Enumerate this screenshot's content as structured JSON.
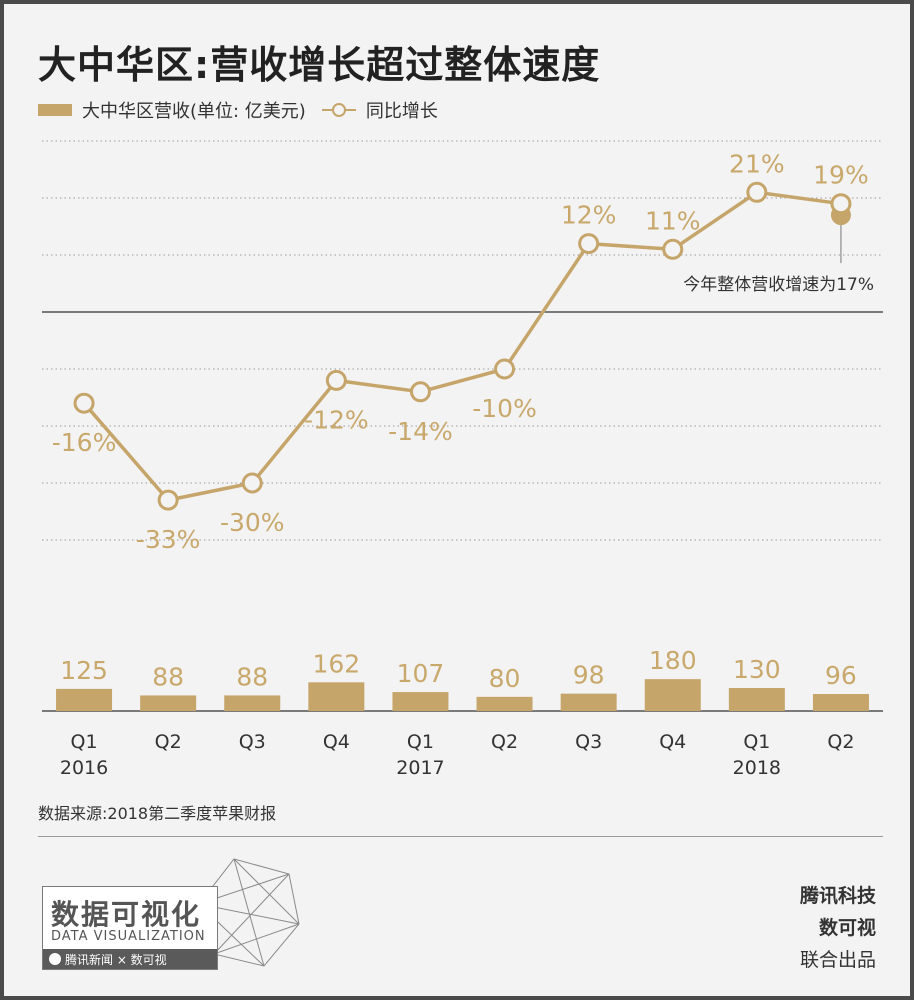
{
  "title": "大中华区:营收增长超过整体速度",
  "legend": {
    "bar_label": "大中华区营收(单位: 亿美元)",
    "line_label": "同比增长"
  },
  "annotation": "今年整体营收增速为17%",
  "source": "数据来源:2018第二季度苹果财报",
  "logo": {
    "cn": "数据可视化",
    "en": "DATA VISUALIZATION",
    "strip": "腾讯新闻 × 数可视"
  },
  "credits": {
    "line1": "腾讯科技",
    "line2": "数可视",
    "line3": "联合出品"
  },
  "colors": {
    "accent": "#c6a56a",
    "label": "#c9a86c",
    "annotation_dot": "#c6a56a"
  },
  "chart_data": {
    "type": "bar+line",
    "categories": [
      "Q1 2016",
      "Q2",
      "Q3",
      "Q4",
      "Q1 2017",
      "Q2",
      "Q3",
      "Q4",
      "Q1 2018",
      "Q2"
    ],
    "quarter_labels": [
      "Q1",
      "Q2",
      "Q3",
      "Q4",
      "Q1",
      "Q2",
      "Q3",
      "Q4",
      "Q1",
      "Q2"
    ],
    "year_labels": [
      "2016",
      "",
      "",
      "",
      "2017",
      "",
      "",
      "",
      "2018",
      ""
    ],
    "series": [
      {
        "name": "大中华区营收(单位: 亿美元)",
        "type": "bar",
        "values": [
          125,
          88,
          88,
          162,
          107,
          80,
          98,
          180,
          130,
          96
        ],
        "labels": [
          "125",
          "88",
          "88",
          "162",
          "107",
          "80",
          "98",
          "180",
          "130",
          "96"
        ]
      },
      {
        "name": "同比增长",
        "type": "line",
        "unit": "%",
        "values": [
          -16,
          -33,
          -30,
          -12,
          -14,
          -10,
          12,
          11,
          21,
          19
        ],
        "labels": [
          "-16%",
          "-33%",
          "-30%",
          "-12%",
          "-14%",
          "-10%",
          "12%",
          "11%",
          "21%",
          "19%"
        ]
      }
    ],
    "reference": {
      "value": 17,
      "label": "今年整体营收增速为17%"
    },
    "grid": true
  }
}
